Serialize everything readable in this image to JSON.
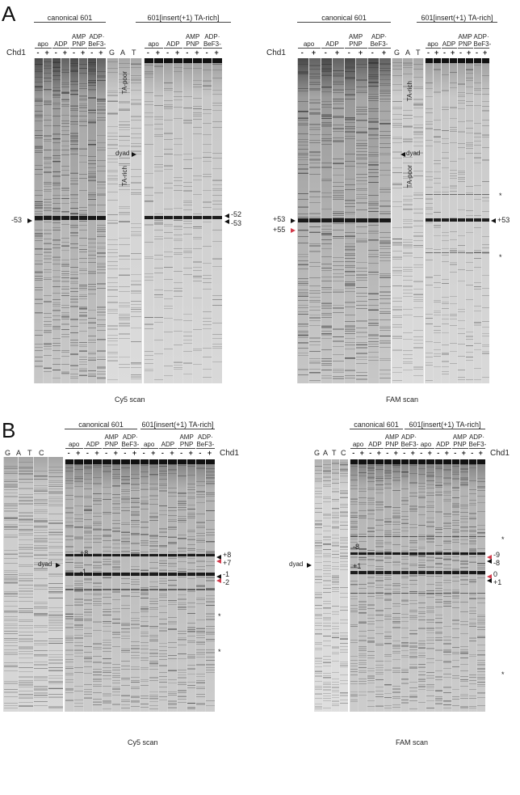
{
  "panels": [
    {
      "letter": "A",
      "chd1_label": "Chd1",
      "construct_1": "canonical 601",
      "construct_2": "601[insert(+1) TA-rich]",
      "conditions": [
        "apo",
        "ADP",
        "AMP PNP",
        "ADP· BeF3-"
      ],
      "signs": [
        "-",
        "+"
      ],
      "ladder": [
        "G",
        "A",
        "T"
      ],
      "left_gel": {
        "scan": "Cy5 scan",
        "left_marker": "-53",
        "right_markers": [
          "-52",
          "-53"
        ],
        "dyad": "dyad",
        "region_top": "TA-poor",
        "region_bottom": "TA-rich"
      },
      "right_gel": {
        "scan": "FAM scan",
        "left_markers": [
          "+53",
          "+55"
        ],
        "right_marker": "+53",
        "dyad": "dyad",
        "region_top": "TA-rich",
        "region_bottom": "TA-poor",
        "asterisk": "*"
      }
    },
    {
      "letter": "B",
      "chd1_label": "Chd1",
      "construct_1": "canonical 601",
      "construct_2": "601[insert(+1) TA-rich]",
      "ladder": [
        "G",
        "A",
        "T",
        "C"
      ],
      "left_gel": {
        "scan": "Cy5 scan",
        "dyad": "dyad",
        "inner_markers": [
          "+8",
          "-1"
        ],
        "right_markers": [
          "+8",
          "+7",
          "-1",
          "-2"
        ],
        "asterisk": "*"
      },
      "right_gel": {
        "scan": "FAM scan",
        "dyad": "dyad",
        "inner_markers": [
          "-8",
          "+1"
        ],
        "right_markers": [
          "-9",
          "-8",
          "0",
          "+1"
        ],
        "asterisk": "*"
      }
    }
  ],
  "colors": {
    "red_marker": "#d23a4a",
    "black_marker": "#111111",
    "gel_bg": "#d6d6d6"
  }
}
